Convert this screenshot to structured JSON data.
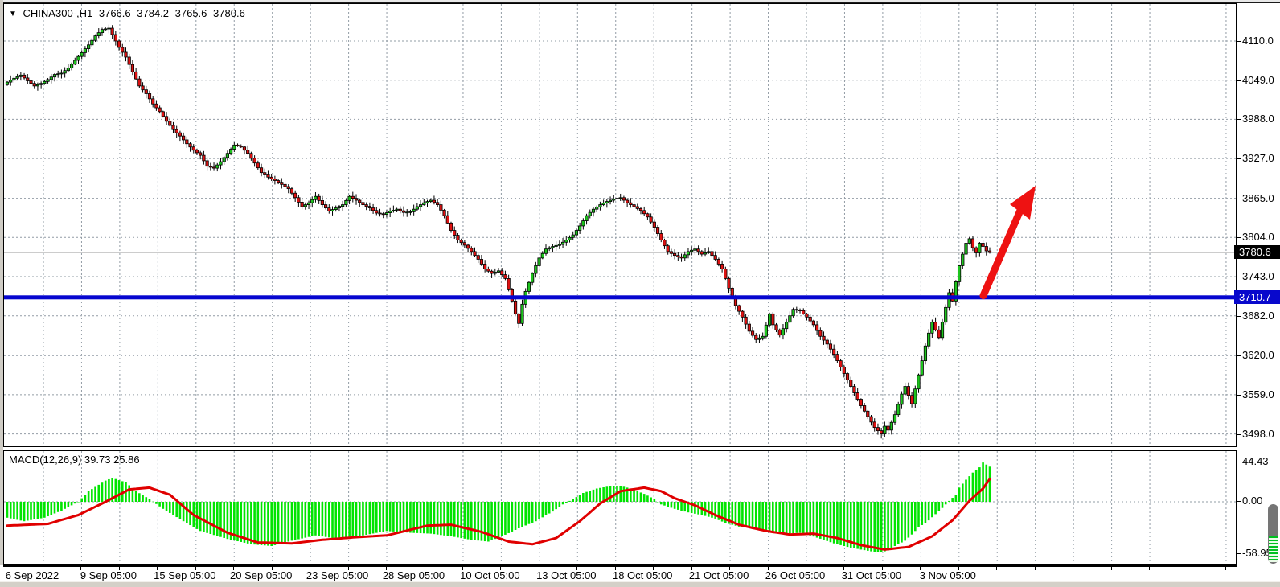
{
  "main_chart": {
    "dropdown_icon": "▼",
    "symbol_period": "CHINA300-,H1",
    "open": "3766.6",
    "high": "3784.2",
    "low": "3765.6",
    "close": "3780.6",
    "current_price_badge": "3780.6",
    "support_level_badge": "3710.7",
    "price_axis_ticks": [
      "4110.0",
      "4049.0",
      "3988.0",
      "3927.0",
      "3865.0",
      "3804.0",
      "3743.0",
      "3682.0",
      "3620.0",
      "3559.0",
      "3498.0"
    ]
  },
  "macd": {
    "label": "MACD(12,26,9) 39.73 25.86",
    "axis_ticks": [
      "44.43",
      "0.00",
      "-58.95"
    ]
  },
  "time_axis": {
    "labels": [
      "6 Sep 2022",
      "9 Sep 05:00",
      "15 Sep 05:00",
      "20 Sep 05:00",
      "23 Sep 05:00",
      "28 Sep 05:00",
      "10 Oct 05:00",
      "13 Oct 05:00",
      "18 Oct 05:00",
      "21 Oct 05:00",
      "26 Oct 05:00",
      "31 Oct 05:00",
      "3 Nov 05:00"
    ]
  },
  "colors": {
    "bull_candle": "#1ec41e",
    "bear_candle": "#e01212",
    "wick": "#000000",
    "grid": "#929ca5",
    "support_line": "#0606cf",
    "current_price_line": "#9a9a9a",
    "macd_histogram": "#00e400",
    "macd_signal": "#e00000",
    "arrow": "#ee1212",
    "badge_black": "#000000",
    "badge_blue": "#0808cc"
  },
  "chart_data": [
    {
      "type": "candlestick",
      "title": "CHINA300-,H1",
      "symbol": "CHINA300-",
      "timeframe": "H1",
      "current_bar_ohlc": {
        "open": 3766.6,
        "high": 3784.2,
        "low": 3765.6,
        "close": 3780.6
      },
      "ylim": [
        3460,
        4145
      ],
      "y_ticks": [
        4110.0,
        4049.0,
        3988.0,
        3927.0,
        3865.0,
        3804.0,
        3743.0,
        3682.0,
        3620.0,
        3559.0,
        3498.0
      ],
      "x_tick_labels": [
        "6 Sep 2022",
        "9 Sep 05:00",
        "15 Sep 05:00",
        "20 Sep 05:00",
        "23 Sep 05:00",
        "28 Sep 05:00",
        "10 Oct 05:00",
        "13 Oct 05:00",
        "18 Oct 05:00",
        "21 Oct 05:00",
        "26 Oct 05:00",
        "31 Oct 05:00",
        "3 Nov 05:00"
      ],
      "grid": "dashed",
      "bar_count": 291,
      "close_anchors": [
        [
          0,
          4046
        ],
        [
          2,
          4052
        ],
        [
          4,
          4057
        ],
        [
          6,
          4048
        ],
        [
          8,
          4040
        ],
        [
          10,
          4044
        ],
        [
          12,
          4050
        ],
        [
          14,
          4058
        ],
        [
          16,
          4060
        ],
        [
          18,
          4068
        ],
        [
          20,
          4080
        ],
        [
          22,
          4092
        ],
        [
          24,
          4104
        ],
        [
          26,
          4118
        ],
        [
          28,
          4128
        ],
        [
          30,
          4130
        ],
        [
          31,
          4120
        ],
        [
          33,
          4100
        ],
        [
          35,
          4085
        ],
        [
          37,
          4062
        ],
        [
          39,
          4040
        ],
        [
          41,
          4028
        ],
        [
          43,
          4012
        ],
        [
          45,
          4000
        ],
        [
          47,
          3985
        ],
        [
          49,
          3972
        ],
        [
          51,
          3962
        ],
        [
          53,
          3950
        ],
        [
          55,
          3940
        ],
        [
          57,
          3932
        ],
        [
          59,
          3915
        ],
        [
          61,
          3912
        ],
        [
          63,
          3922
        ],
        [
          65,
          3935
        ],
        [
          67,
          3948
        ],
        [
          69,
          3945
        ],
        [
          71,
          3935
        ],
        [
          73,
          3920
        ],
        [
          75,
          3905
        ],
        [
          77,
          3898
        ],
        [
          80,
          3890
        ],
        [
          83,
          3880
        ],
        [
          85,
          3866
        ],
        [
          87,
          3852
        ],
        [
          89,
          3858
        ],
        [
          91,
          3868
        ],
        [
          93,
          3855
        ],
        [
          95,
          3845
        ],
        [
          97,
          3850
        ],
        [
          99,
          3855
        ],
        [
          101,
          3868
        ],
        [
          103,
          3862
        ],
        [
          105,
          3855
        ],
        [
          107,
          3850
        ],
        [
          109,
          3842
        ],
        [
          111,
          3840
        ],
        [
          113,
          3845
        ],
        [
          115,
          3848
        ],
        [
          117,
          3843
        ],
        [
          119,
          3844
        ],
        [
          121,
          3852
        ],
        [
          123,
          3858
        ],
        [
          125,
          3862
        ],
        [
          127,
          3855
        ],
        [
          129,
          3838
        ],
        [
          131,
          3815
        ],
        [
          133,
          3800
        ],
        [
          135,
          3792
        ],
        [
          137,
          3782
        ],
        [
          139,
          3770
        ],
        [
          141,
          3755
        ],
        [
          143,
          3748
        ],
        [
          145,
          3752
        ],
        [
          147,
          3740
        ],
        [
          149,
          3705
        ],
        [
          150,
          3685
        ],
        [
          151,
          3670
        ],
        [
          152,
          3700
        ],
        [
          153,
          3720
        ],
        [
          155,
          3748
        ],
        [
          157,
          3772
        ],
        [
          159,
          3786
        ],
        [
          161,
          3790
        ],
        [
          163,
          3793
        ],
        [
          165,
          3800
        ],
        [
          167,
          3808
        ],
        [
          169,
          3822
        ],
        [
          171,
          3838
        ],
        [
          173,
          3848
        ],
        [
          175,
          3855
        ],
        [
          177,
          3860
        ],
        [
          179,
          3864
        ],
        [
          181,
          3866
        ],
        [
          183,
          3858
        ],
        [
          185,
          3852
        ],
        [
          187,
          3846
        ],
        [
          189,
          3836
        ],
        [
          191,
          3820
        ],
        [
          193,
          3800
        ],
        [
          195,
          3782
        ],
        [
          197,
          3776
        ],
        [
          199,
          3772
        ],
        [
          201,
          3782
        ],
        [
          203,
          3786
        ],
        [
          205,
          3778
        ],
        [
          207,
          3782
        ],
        [
          209,
          3770
        ],
        [
          211,
          3755
        ],
        [
          213,
          3725
        ],
        [
          215,
          3698
        ],
        [
          217,
          3680
        ],
        [
          219,
          3658
        ],
        [
          221,
          3645
        ],
        [
          223,
          3650
        ],
        [
          225,
          3685
        ],
        [
          226,
          3668
        ],
        [
          228,
          3652
        ],
        [
          230,
          3672
        ],
        [
          232,
          3692
        ],
        [
          234,
          3690
        ],
        [
          236,
          3680
        ],
        [
          238,
          3668
        ],
        [
          240,
          3650
        ],
        [
          242,
          3638
        ],
        [
          244,
          3622
        ],
        [
          246,
          3602
        ],
        [
          248,
          3582
        ],
        [
          250,
          3562
        ],
        [
          252,
          3542
        ],
        [
          254,
          3525
        ],
        [
          256,
          3508
        ],
        [
          258,
          3498
        ],
        [
          259,
          3510
        ],
        [
          260,
          3504
        ],
        [
          262,
          3528
        ],
        [
          264,
          3560
        ],
        [
          265,
          3572
        ],
        [
          266,
          3558
        ],
        [
          267,
          3545
        ],
        [
          268,
          3568
        ],
        [
          269,
          3590
        ],
        [
          270,
          3612
        ],
        [
          271,
          3635
        ],
        [
          272,
          3655
        ],
        [
          273,
          3672
        ],
        [
          274,
          3660
        ],
        [
          275,
          3648
        ],
        [
          276,
          3672
        ],
        [
          277,
          3695
        ],
        [
          278,
          3718
        ],
        [
          279,
          3705
        ],
        [
          280,
          3735
        ],
        [
          281,
          3760
        ],
        [
          282,
          3778
        ],
        [
          283,
          3795
        ],
        [
          284,
          3802
        ],
        [
          285,
          3788
        ],
        [
          286,
          3780
        ],
        [
          287,
          3795
        ],
        [
          288,
          3790
        ],
        [
          289,
          3783
        ],
        [
          290,
          3780.6
        ]
      ],
      "horizontal_line": {
        "price": 3710.7,
        "label": "3710.7"
      },
      "current_price_line": {
        "price": 3780.6,
        "label": "3780.6"
      },
      "annotation_arrow": {
        "from_price": 3711,
        "to_price": 3872,
        "direction": "up-right"
      }
    },
    {
      "type": "bar",
      "subtype": "macd_histogram_with_signal",
      "title": "MACD(12,26,9)",
      "macd_value": 39.73,
      "signal_value": 25.86,
      "ylim": [
        -58.95,
        44.43
      ],
      "y_ticks": [
        44.43,
        0.0,
        -58.95
      ],
      "bar_count": 291,
      "histogram_anchors": [
        [
          0,
          -18
        ],
        [
          5,
          -22
        ],
        [
          11,
          -18
        ],
        [
          16,
          -10
        ],
        [
          21,
          0
        ],
        [
          24,
          12
        ],
        [
          29,
          24
        ],
        [
          31,
          27
        ],
        [
          35,
          22
        ],
        [
          38,
          12
        ],
        [
          42,
          3
        ],
        [
          46,
          -8
        ],
        [
          52,
          -22
        ],
        [
          57,
          -33
        ],
        [
          65,
          -42
        ],
        [
          72,
          -48
        ],
        [
          78,
          -50
        ],
        [
          84,
          -44
        ],
        [
          91,
          -38
        ],
        [
          98,
          -42
        ],
        [
          105,
          -38
        ],
        [
          112,
          -33
        ],
        [
          119,
          -35
        ],
        [
          125,
          -36
        ],
        [
          131,
          -39
        ],
        [
          137,
          -43
        ],
        [
          142,
          -45
        ],
        [
          146,
          -39
        ],
        [
          151,
          -30
        ],
        [
          156,
          -22
        ],
        [
          161,
          -11
        ],
        [
          164,
          -3
        ],
        [
          167,
          3
        ],
        [
          170,
          10
        ],
        [
          174,
          15
        ],
        [
          177,
          17
        ],
        [
          181,
          18
        ],
        [
          184,
          15
        ],
        [
          188,
          9
        ],
        [
          191,
          3
        ],
        [
          193,
          -3
        ],
        [
          197,
          -8
        ],
        [
          201,
          -12
        ],
        [
          205,
          -15
        ],
        [
          209,
          -19
        ],
        [
          212,
          -24
        ],
        [
          216,
          -28
        ],
        [
          220,
          -30
        ],
        [
          223,
          -32
        ],
        [
          227,
          -34
        ],
        [
          230,
          -36
        ],
        [
          234,
          -35
        ],
        [
          237,
          -38
        ],
        [
          241,
          -43
        ],
        [
          244,
          -47
        ],
        [
          248,
          -51
        ],
        [
          252,
          -54
        ],
        [
          255,
          -56
        ],
        [
          258,
          -57
        ],
        [
          260,
          -55
        ],
        [
          262,
          -50
        ],
        [
          265,
          -44
        ],
        [
          267,
          -37
        ],
        [
          269,
          -29
        ],
        [
          272,
          -21
        ],
        [
          274,
          -14
        ],
        [
          276,
          -7
        ],
        [
          278,
          1
        ],
        [
          280,
          8
        ],
        [
          281,
          16
        ],
        [
          283,
          25
        ],
        [
          285,
          33
        ],
        [
          287,
          39
        ],
        [
          288,
          44.43
        ],
        [
          290,
          39.73
        ]
      ],
      "signal_anchors": [
        [
          0,
          -27
        ],
        [
          12,
          -25
        ],
        [
          21,
          -15
        ],
        [
          29,
          0
        ],
        [
          36,
          14
        ],
        [
          42,
          16
        ],
        [
          48,
          8
        ],
        [
          55,
          -15
        ],
        [
          65,
          -35
        ],
        [
          74,
          -46
        ],
        [
          84,
          -47
        ],
        [
          93,
          -43
        ],
        [
          103,
          -40
        ],
        [
          112,
          -38
        ],
        [
          124,
          -27
        ],
        [
          131,
          -26
        ],
        [
          140,
          -34
        ],
        [
          148,
          -45
        ],
        [
          155,
          -48
        ],
        [
          162,
          -41
        ],
        [
          169,
          -22
        ],
        [
          175,
          -2
        ],
        [
          181,
          12
        ],
        [
          188,
          16
        ],
        [
          193,
          12
        ],
        [
          197,
          4
        ],
        [
          203,
          -4
        ],
        [
          209,
          -15
        ],
        [
          216,
          -26
        ],
        [
          224,
          -33
        ],
        [
          231,
          -37
        ],
        [
          238,
          -36
        ],
        [
          245,
          -41
        ],
        [
          252,
          -49
        ],
        [
          259,
          -54
        ],
        [
          266,
          -51
        ],
        [
          273,
          -39
        ],
        [
          279,
          -21
        ],
        [
          284,
          1
        ],
        [
          288,
          15
        ],
        [
          290,
          25.86
        ]
      ]
    }
  ]
}
